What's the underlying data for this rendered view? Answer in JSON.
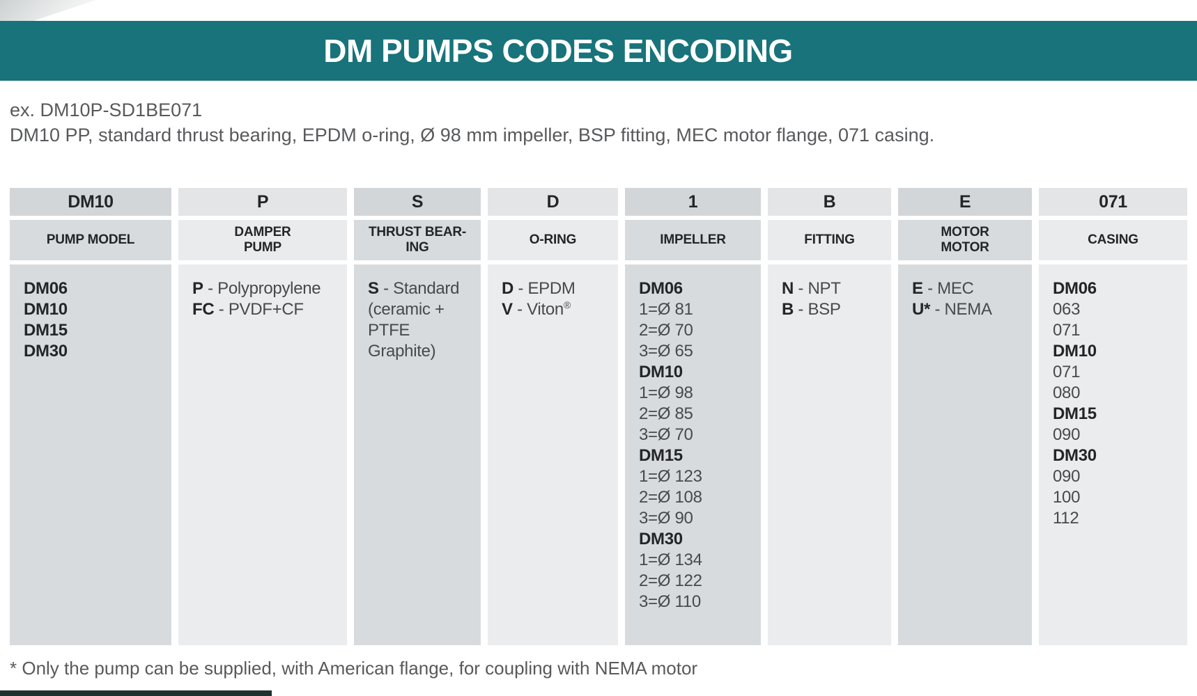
{
  "page": {
    "title": "DM PUMPS CODES ENCODING",
    "example_label": "ex. DM10P-SD1BE071",
    "example_description": "DM10 PP, standard thrust bearing, EPDM o-ring, Ø 98 mm impeller, BSP fitting, MEC motor flange, 071 casing.",
    "footnote": "* Only the pump can be supplied, with American flange, for coupling with NEMA motor"
  },
  "colors": {
    "banner_teal": "#18737a",
    "column_dark_gray": "#d8dbdd",
    "column_light_gray": "#eaeced",
    "text_dark": "#232528",
    "text_gray": "#58595b"
  },
  "table": {
    "columns": [
      {
        "code": "DM10",
        "label_lines": [
          "PUMP MODEL"
        ],
        "shade": "dark",
        "lines": [
          {
            "b": "DM06"
          },
          {
            "b": "DM10"
          },
          {
            "b": "DM15"
          },
          {
            "b": "DM30"
          }
        ]
      },
      {
        "code": "P",
        "label_lines": [
          "DAMPER",
          "PUMP"
        ],
        "shade": "light",
        "lines": [
          {
            "b": "P",
            "r": " - Polypropylene"
          },
          {
            "b": "FC",
            "r": " - PVDF+CF"
          }
        ]
      },
      {
        "code": "S",
        "label_lines": [
          "THRUST BEAR-",
          "ING"
        ],
        "shade": "dark",
        "lines": [
          {
            "b": "S",
            "r": " - Standard"
          },
          {
            "r": "(ceramic +"
          },
          {
            "r": "PTFE Graphite)"
          }
        ]
      },
      {
        "code": "D",
        "label_lines": [
          "O-RING"
        ],
        "shade": "light",
        "lines": [
          {
            "b": "D",
            "r": " - EPDM"
          },
          {
            "b": "V",
            "r": " - Viton",
            "sup": "®"
          }
        ]
      },
      {
        "code": "1",
        "label_lines": [
          "IMPELLER"
        ],
        "shade": "dark",
        "lines": [
          {
            "b": "DM06"
          },
          {
            "r": "1=Ø 81"
          },
          {
            "r": "2=Ø 70"
          },
          {
            "r": "3=Ø 65"
          },
          {
            "b": "DM10"
          },
          {
            "r": "1=Ø 98"
          },
          {
            "r": "2=Ø 85"
          },
          {
            "r": "3=Ø 70"
          },
          {
            "b": "DM15"
          },
          {
            "r": "1=Ø 123"
          },
          {
            "r": "2=Ø 108"
          },
          {
            "r": "3=Ø 90"
          },
          {
            "b": "DM30"
          },
          {
            "r": "1=Ø 134"
          },
          {
            "r": "2=Ø 122"
          },
          {
            "r": "3=Ø 110"
          }
        ]
      },
      {
        "code": "B",
        "label_lines": [
          "FITTING"
        ],
        "shade": "light",
        "lines": [
          {
            "b": "N",
            "r": " - NPT"
          },
          {
            "b": "B",
            "r": " - BSP"
          }
        ]
      },
      {
        "code": "E",
        "label_lines": [
          "MOTOR",
          "MOTOR"
        ],
        "shade": "dark",
        "lines": [
          {
            "b": "E",
            "r": " - MEC"
          },
          {
            "b": "U*",
            "r": " - NEMA"
          }
        ]
      },
      {
        "code": "071",
        "label_lines": [
          "CASING"
        ],
        "shade": "light",
        "lines": [
          {
            "b": "DM06"
          },
          {
            "r": "063"
          },
          {
            "r": "071"
          },
          {
            "b": "DM10"
          },
          {
            "r": "071"
          },
          {
            "r": "080"
          },
          {
            "b": "DM15"
          },
          {
            "r": "090"
          },
          {
            "b": "DM30"
          },
          {
            "r": "090"
          },
          {
            "r": "100"
          },
          {
            "r": "112"
          }
        ]
      }
    ]
  }
}
